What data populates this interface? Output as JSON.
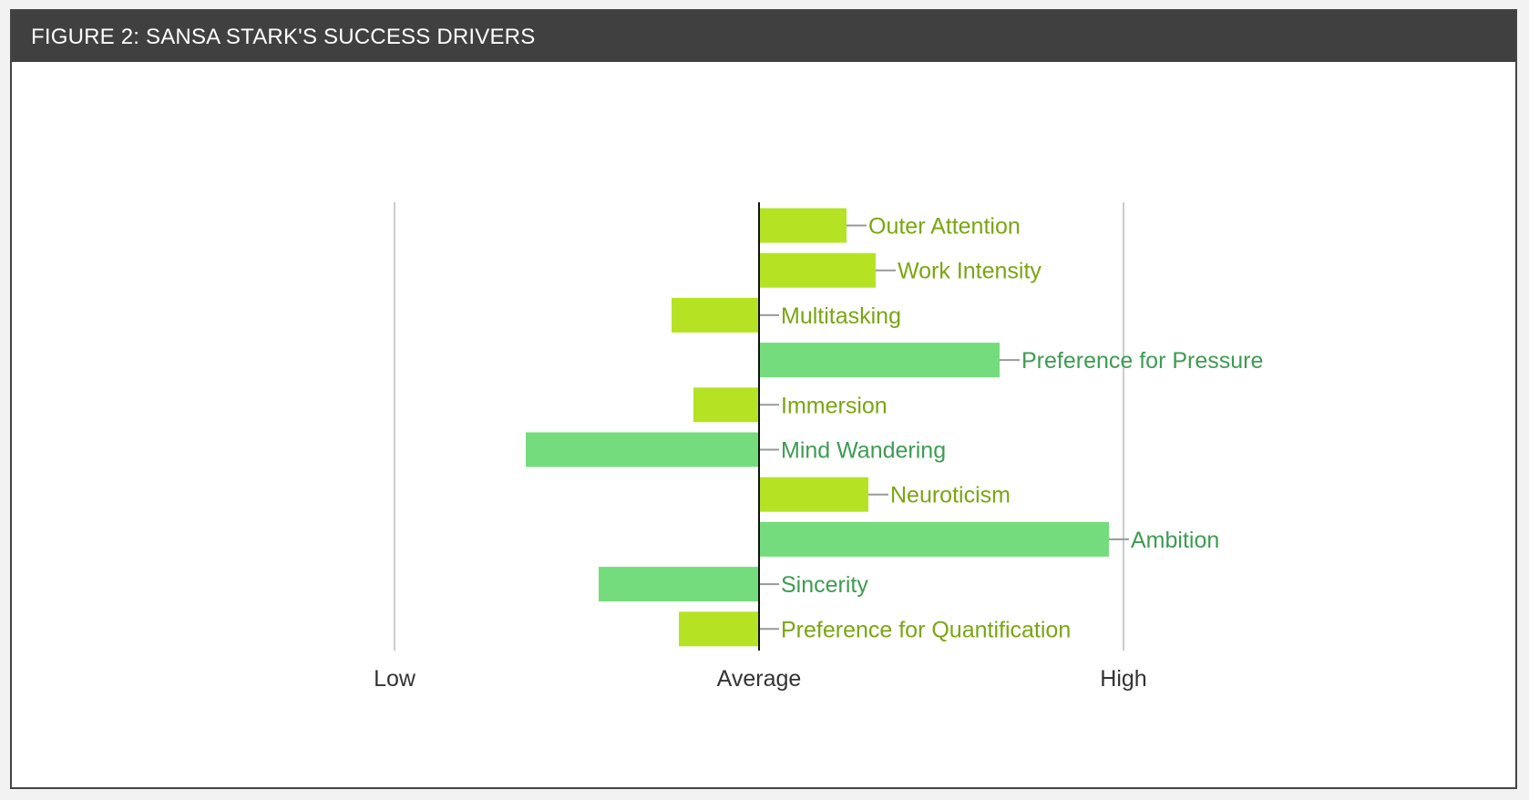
{
  "figure": {
    "title": "FIGURE 2: SANSA STARK'S SUCCESS DRIVERS"
  },
  "chart_data": {
    "type": "bar",
    "orientation": "horizontal",
    "title": "FIGURE 2: SANSA STARK'S SUCCESS DRIVERS",
    "xlabel": "",
    "ylabel": "",
    "xlim": [
      -1,
      1
    ],
    "tick_labels": [
      "Low",
      "Average",
      "High"
    ],
    "tick_values": [
      -1,
      0,
      1
    ],
    "grid": true,
    "legend": "none",
    "colors": {
      "lime": "#b5e324",
      "green": "#74dc7c",
      "lime_text": "#7aa512",
      "green_text": "#3f9b52",
      "axis": "#111111",
      "grid": "#cccccc",
      "leader": "#999999",
      "tick_text": "#333333"
    },
    "categories": [
      "Outer Attention",
      "Work Intensity",
      "Multitasking",
      "Preference for Pressure",
      "Immersion",
      "Mind Wandering",
      "Neuroticism",
      "Ambition",
      "Sincerity",
      "Preference for Quantification"
    ],
    "values": [
      0.24,
      0.32,
      -0.24,
      0.66,
      -0.18,
      -0.64,
      0.3,
      0.96,
      -0.44,
      -0.22
    ],
    "bar_colors": [
      "lime",
      "lime",
      "lime",
      "green",
      "lime",
      "green",
      "lime",
      "green",
      "green",
      "lime"
    ]
  }
}
